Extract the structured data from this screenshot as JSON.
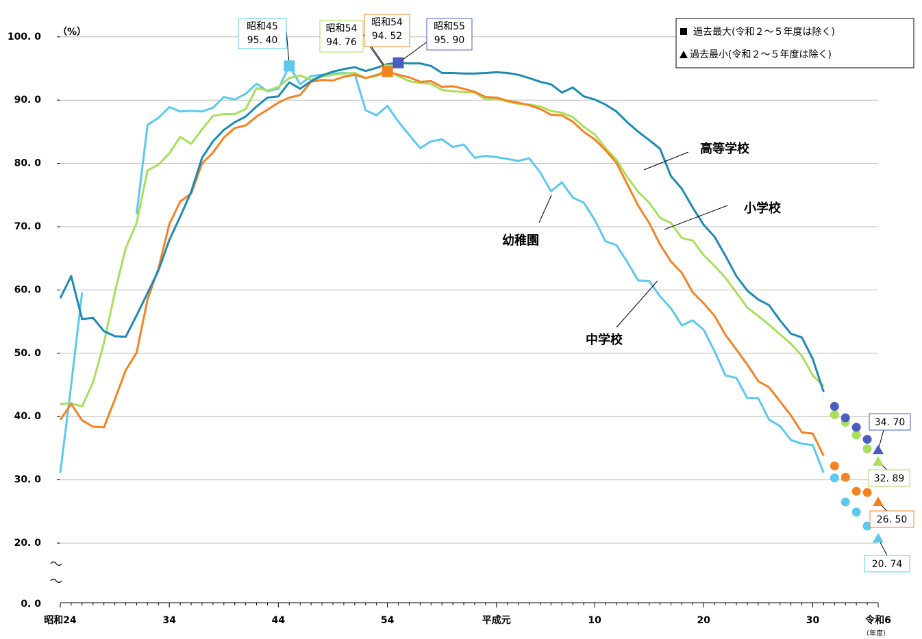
{
  "chart_data": {
    "type": "line",
    "y_label": "（%）",
    "x_label": "（年度）",
    "ylim": [
      0,
      100
    ],
    "y_break": true,
    "yticks": [
      {
        "value": 0,
        "label": "0. 0"
      },
      {
        "value": 20,
        "label": "20. 0"
      },
      {
        "value": 30,
        "label": "30. 0"
      },
      {
        "value": 40,
        "label": "40. 0"
      },
      {
        "value": 50,
        "label": "50. 0"
      },
      {
        "value": 60,
        "label": "60. 0"
      },
      {
        "value": 70,
        "label": "70. 0"
      },
      {
        "value": 80,
        "label": "80. 0"
      },
      {
        "value": 90,
        "label": "90. 0"
      },
      {
        "value": 100,
        "label": "100. 0"
      }
    ],
    "grid": true,
    "legend_position": "top-right",
    "legend": {
      "max": "過去最大(令和２～５年度は除く)",
      "min": "過去最小(令和２～５年度は除く)"
    },
    "categories": [
      "昭和24",
      null,
      null,
      null,
      null,
      null,
      null,
      null,
      null,
      null,
      "34",
      null,
      null,
      null,
      null,
      null,
      null,
      null,
      null,
      null,
      "44",
      null,
      null,
      null,
      null,
      null,
      null,
      null,
      null,
      null,
      "54",
      null,
      null,
      null,
      null,
      null,
      null,
      null,
      null,
      null,
      "平成元",
      null,
      null,
      null,
      null,
      null,
      null,
      null,
      null,
      "10",
      null,
      null,
      null,
      null,
      null,
      null,
      null,
      null,
      null,
      "20",
      null,
      null,
      null,
      null,
      null,
      null,
      null,
      null,
      null,
      "30",
      null,
      null,
      null,
      null,
      null,
      "令和6"
    ],
    "series": [
      {
        "name": "幼稚園",
        "color": "#5bc8f0",
        "marker_color": "#5bc8f0",
        "values": [
          31.1,
          45.0,
          59.6,
          null,
          null,
          null,
          null,
          72.0,
          86.1,
          87.2,
          88.9,
          88.2,
          88.3,
          88.2,
          88.8,
          90.5,
          90.1,
          91.0,
          92.6,
          91.4,
          91.8,
          95.4,
          92.5,
          93.8,
          94.0,
          94.2,
          94.3,
          94.2,
          88.4,
          87.6,
          89.1,
          86.6,
          84.5,
          82.4,
          83.5,
          83.8,
          82.6,
          83.0,
          80.9,
          81.2,
          81.0,
          80.7,
          80.4,
          80.8,
          78.6,
          75.6,
          77.0,
          74.6,
          73.8,
          71.1,
          67.7,
          67.1,
          64.4,
          61.5,
          61.4,
          59.0,
          57.1,
          54.4,
          55.2,
          53.7,
          50.3,
          46.5,
          46.1,
          42.9,
          42.9,
          39.5,
          38.5,
          36.3,
          35.7,
          35.5,
          31.1,
          null,
          null,
          null,
          null,
          null
        ],
        "dots": [
          null,
          null,
          null,
          null,
          null,
          null,
          null,
          null,
          null,
          null,
          null,
          null,
          null,
          null,
          null,
          null,
          null,
          null,
          null,
          null,
          null,
          null,
          null,
          null,
          null,
          null,
          null,
          null,
          null,
          null,
          null,
          null,
          null,
          null,
          null,
          null,
          null,
          null,
          null,
          null,
          null,
          null,
          null,
          null,
          null,
          null,
          null,
          null,
          null,
          null,
          null,
          null,
          null,
          null,
          null,
          null,
          null,
          null,
          null,
          null,
          null,
          null,
          null,
          null,
          null,
          null,
          null,
          null,
          null,
          null,
          null,
          30.3,
          26.5,
          24.9,
          22.7,
          null
        ],
        "max": {
          "label": "昭和45",
          "value": 95.4,
          "value_label": "95. 40"
        },
        "min": {
          "value": 20.74,
          "value_label": "20. 74"
        }
      },
      {
        "name": "小学校",
        "color": "#a6e05a",
        "marker_color": "#a6e05a",
        "values": [
          42.0,
          42.1,
          41.6,
          45.4,
          51.6,
          59.6,
          66.6,
          70.6,
          78.9,
          79.8,
          81.6,
          84.2,
          83.1,
          85.4,
          87.5,
          87.8,
          87.8,
          88.6,
          91.9,
          91.5,
          92.1,
          93.5,
          93.9,
          93.2,
          93.7,
          94.0,
          94.2,
          94.3,
          93.5,
          94.0,
          94.76,
          93.8,
          93.0,
          92.7,
          92.6,
          91.6,
          91.4,
          91.3,
          91.2,
          90.1,
          90.2,
          89.8,
          89.4,
          89.3,
          89.0,
          88.3,
          88.0,
          87.3,
          85.8,
          84.6,
          82.4,
          80.6,
          77.8,
          75.5,
          73.8,
          71.4,
          70.6,
          68.2,
          67.8,
          65.5,
          63.8,
          61.9,
          59.6,
          57.2,
          55.9,
          54.5,
          53.0,
          51.5,
          49.6,
          46.5,
          44.8,
          null,
          null,
          null,
          null,
          null
        ],
        "dots": [
          null,
          null,
          null,
          null,
          null,
          null,
          null,
          null,
          null,
          null,
          null,
          null,
          null,
          null,
          null,
          null,
          null,
          null,
          null,
          null,
          null,
          null,
          null,
          null,
          null,
          null,
          null,
          null,
          null,
          null,
          null,
          null,
          null,
          null,
          null,
          null,
          null,
          null,
          null,
          null,
          null,
          null,
          null,
          null,
          null,
          null,
          null,
          null,
          null,
          null,
          null,
          null,
          null,
          null,
          null,
          null,
          null,
          null,
          null,
          null,
          null,
          null,
          null,
          null,
          null,
          null,
          null,
          null,
          null,
          null,
          null,
          40.3,
          39.1,
          37.1,
          34.9,
          null
        ],
        "max": {
          "label": "昭和54",
          "value": 94.76,
          "value_label": "94. 76"
        },
        "min": {
          "value": 32.89,
          "value_label": "32. 89"
        }
      },
      {
        "name": "中学校",
        "color": "#f58220",
        "marker_color": "#f58220",
        "values": [
          39.5,
          42.0,
          39.4,
          38.4,
          38.3,
          42.7,
          47.3,
          50.1,
          58.5,
          63.4,
          70.4,
          74.0,
          75.2,
          80.0,
          81.7,
          84.1,
          85.6,
          86.0,
          87.4,
          88.5,
          89.6,
          90.4,
          90.8,
          92.9,
          93.2,
          93.1,
          93.7,
          94.0,
          93.5,
          93.9,
          94.52,
          94.0,
          93.6,
          92.9,
          93.0,
          92.1,
          92.2,
          91.8,
          91.3,
          90.5,
          90.4,
          89.9,
          89.6,
          89.2,
          88.6,
          87.7,
          87.6,
          86.6,
          85.0,
          83.8,
          82.1,
          80.1,
          76.7,
          73.3,
          70.6,
          67.2,
          64.5,
          62.7,
          59.6,
          57.9,
          55.9,
          52.9,
          50.6,
          48.2,
          45.6,
          44.6,
          42.4,
          40.2,
          37.5,
          37.3,
          33.8,
          null,
          null,
          null,
          null,
          null
        ],
        "dots": [
          null,
          null,
          null,
          null,
          null,
          null,
          null,
          null,
          null,
          null,
          null,
          null,
          null,
          null,
          null,
          null,
          null,
          null,
          null,
          null,
          null,
          null,
          null,
          null,
          null,
          null,
          null,
          null,
          null,
          null,
          null,
          null,
          null,
          null,
          null,
          null,
          null,
          null,
          null,
          null,
          null,
          null,
          null,
          null,
          null,
          null,
          null,
          null,
          null,
          null,
          null,
          null,
          null,
          null,
          null,
          null,
          null,
          null,
          null,
          null,
          null,
          null,
          null,
          null,
          null,
          null,
          null,
          null,
          null,
          null,
          null,
          32.2,
          30.4,
          28.2,
          28.0,
          null
        ],
        "max": {
          "label": "昭和54",
          "value": 94.52,
          "value_label": "94. 52"
        },
        "min": {
          "value": 26.5,
          "value_label": "26. 50"
        }
      },
      {
        "name": "高等学校",
        "color": "#1b8ab5",
        "marker_color": "#4a5cc0",
        "values": [
          58.7,
          62.2,
          55.4,
          55.6,
          53.5,
          52.7,
          52.6,
          56.0,
          59.5,
          63.1,
          67.9,
          71.6,
          75.5,
          80.9,
          83.5,
          85.3,
          86.5,
          87.4,
          89.0,
          90.4,
          90.6,
          92.8,
          91.8,
          93.0,
          93.9,
          94.5,
          94.9,
          95.2,
          94.6,
          95.1,
          95.7,
          95.9,
          95.8,
          95.8,
          95.4,
          94.3,
          94.3,
          94.2,
          94.2,
          94.3,
          94.4,
          94.3,
          94.0,
          93.5,
          92.9,
          92.5,
          91.2,
          92.0,
          90.6,
          90.1,
          89.3,
          88.2,
          86.5,
          85.0,
          83.7,
          82.3,
          78.0,
          76.0,
          73.0,
          70.3,
          68.4,
          65.4,
          62.2,
          59.9,
          58.5,
          57.6,
          55.2,
          53.1,
          52.5,
          49.1,
          43.9,
          null,
          null,
          null,
          null,
          null
        ],
        "dots": [
          null,
          null,
          null,
          null,
          null,
          null,
          null,
          null,
          null,
          null,
          null,
          null,
          null,
          null,
          null,
          null,
          null,
          null,
          null,
          null,
          null,
          null,
          null,
          null,
          null,
          null,
          null,
          null,
          null,
          null,
          null,
          null,
          null,
          null,
          null,
          null,
          null,
          null,
          null,
          null,
          null,
          null,
          null,
          null,
          null,
          null,
          null,
          null,
          null,
          null,
          null,
          null,
          null,
          null,
          null,
          null,
          null,
          null,
          null,
          null,
          null,
          null,
          null,
          null,
          null,
          null,
          null,
          null,
          null,
          null,
          null,
          41.6,
          39.8,
          38.3,
          36.4,
          null
        ],
        "max": {
          "label": "昭和55",
          "value": 95.9,
          "value_label": "95. 90"
        },
        "min": {
          "value": 34.7,
          "value_label": "34. 70"
        }
      }
    ]
  }
}
